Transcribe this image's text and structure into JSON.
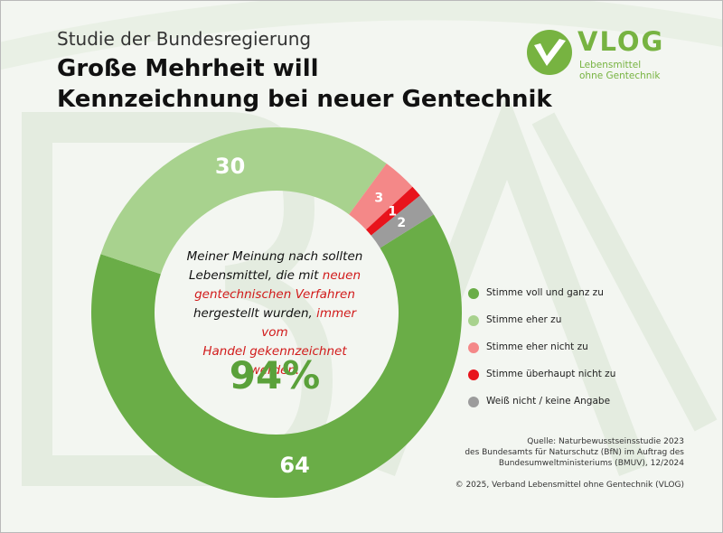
{
  "header": {
    "subtitle": "Studie der Bundesregierung",
    "title_line1": "Große Mehrheit will",
    "title_line2": "Kennzeichnung bei neuer Gentechnik"
  },
  "logo": {
    "word": "VLOG",
    "line1": "Lebensmittel",
    "line2": "ohne Gentechnik",
    "color": "#77b341"
  },
  "center": {
    "line1": "Meiner Meinung nach sollten",
    "line2a": "Lebensmittel, die mit ",
    "line2b": "neuen",
    "line3": "gentechnischen Verfahren",
    "line4a": "hergestellt wurden, ",
    "line4b": "immer vom",
    "line5": "Handel gekennzeichnet werden.",
    "value": "94%"
  },
  "chart_data": {
    "type": "pie",
    "variant": "donut",
    "title": "",
    "categories": [
      "Stimme voll und ganz zu",
      "Stimme eher zu",
      "Stimme eher nicht zu",
      "Stimme überhaupt nicht zu",
      "Weiß nicht / keine Angabe"
    ],
    "values": [
      64,
      30,
      3,
      1,
      2
    ],
    "labels": [
      "64",
      "30",
      "3",
      "1",
      "2"
    ],
    "colors": [
      "#6aad47",
      "#a8d28e",
      "#f48888",
      "#e8141c",
      "#9c9c9c"
    ],
    "legend_position": "right"
  },
  "source": {
    "line1": "Quelle: Naturbewusstseinsstudie 2023",
    "line2": "des Bundesamts für Naturschutz (BfN) im Auftrag des",
    "line3": "Bundesumweltministeriums (BMUV), 12/2024",
    "copyright": "© 2025, Verband Lebensmittel ohne Gentechnik (VLOG)"
  }
}
